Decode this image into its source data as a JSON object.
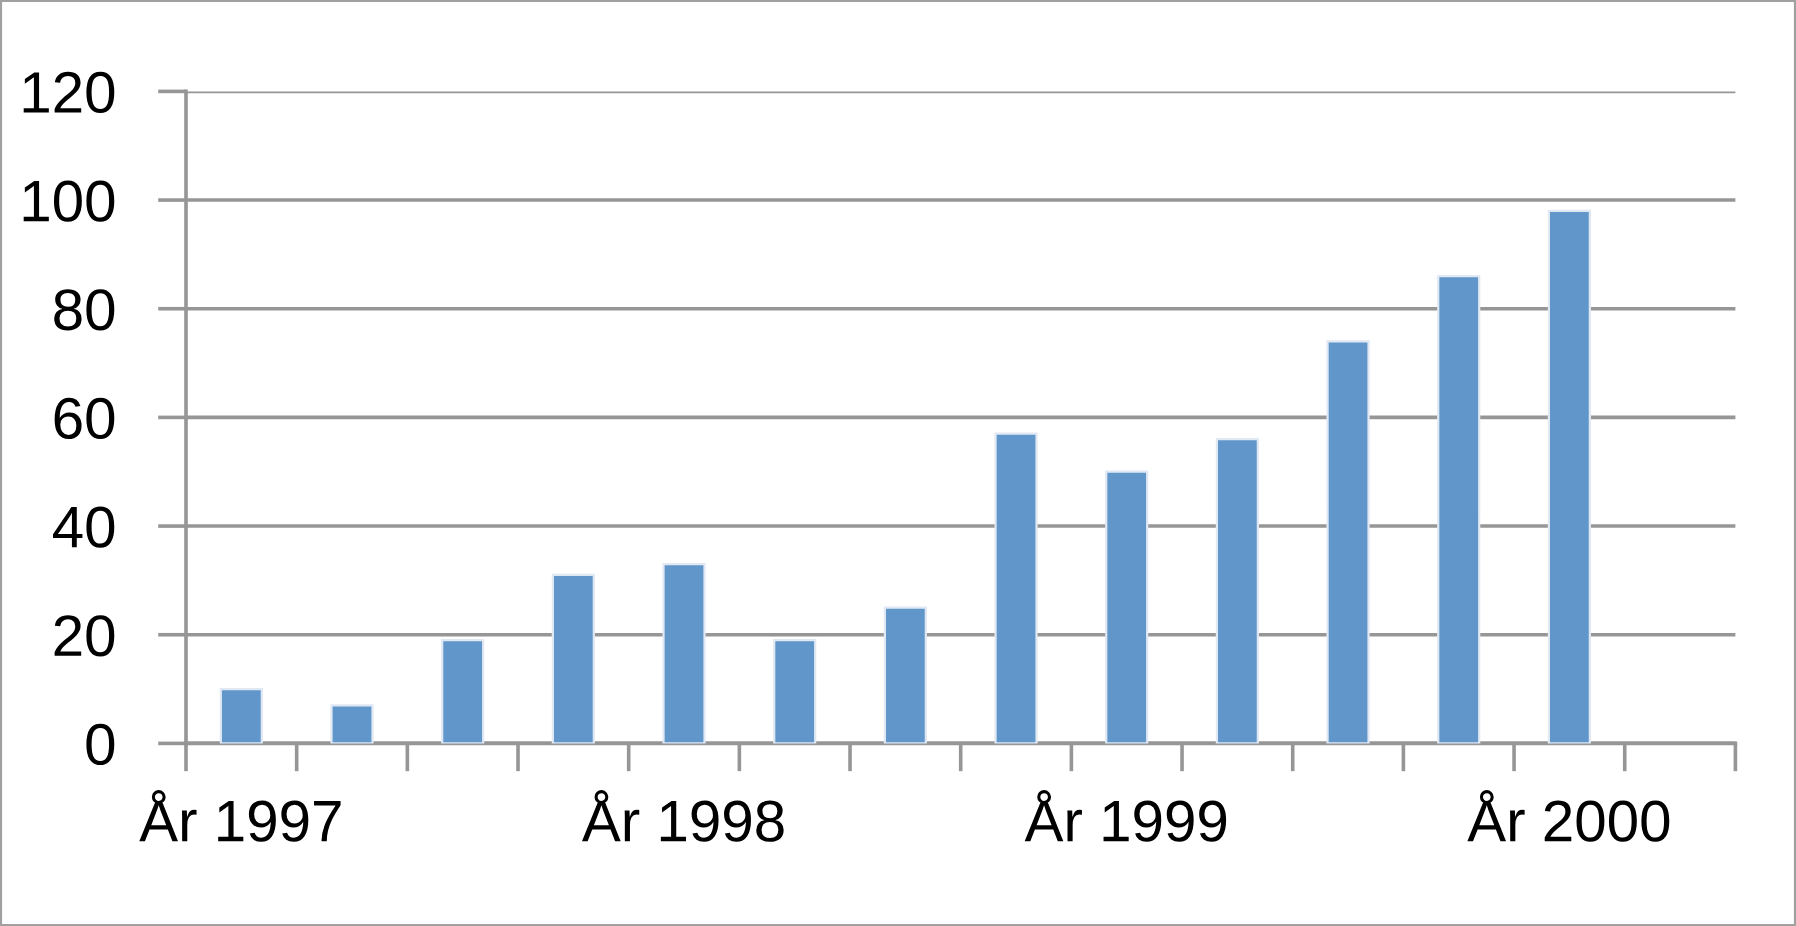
{
  "chart_data": {
    "type": "bar",
    "categories": [
      "År 1997",
      null,
      null,
      null,
      "År 1998",
      null,
      null,
      null,
      "År 1999",
      null,
      null,
      null,
      "År 2000",
      null
    ],
    "values": [
      10,
      7,
      19,
      31,
      33,
      19,
      25,
      57,
      50,
      56,
      74,
      86,
      98,
      null
    ],
    "color": "#6096c9",
    "ylim": [
      0,
      120
    ],
    "yticks": [
      0,
      20,
      40,
      60,
      80,
      100,
      120
    ],
    "grid": "y"
  }
}
